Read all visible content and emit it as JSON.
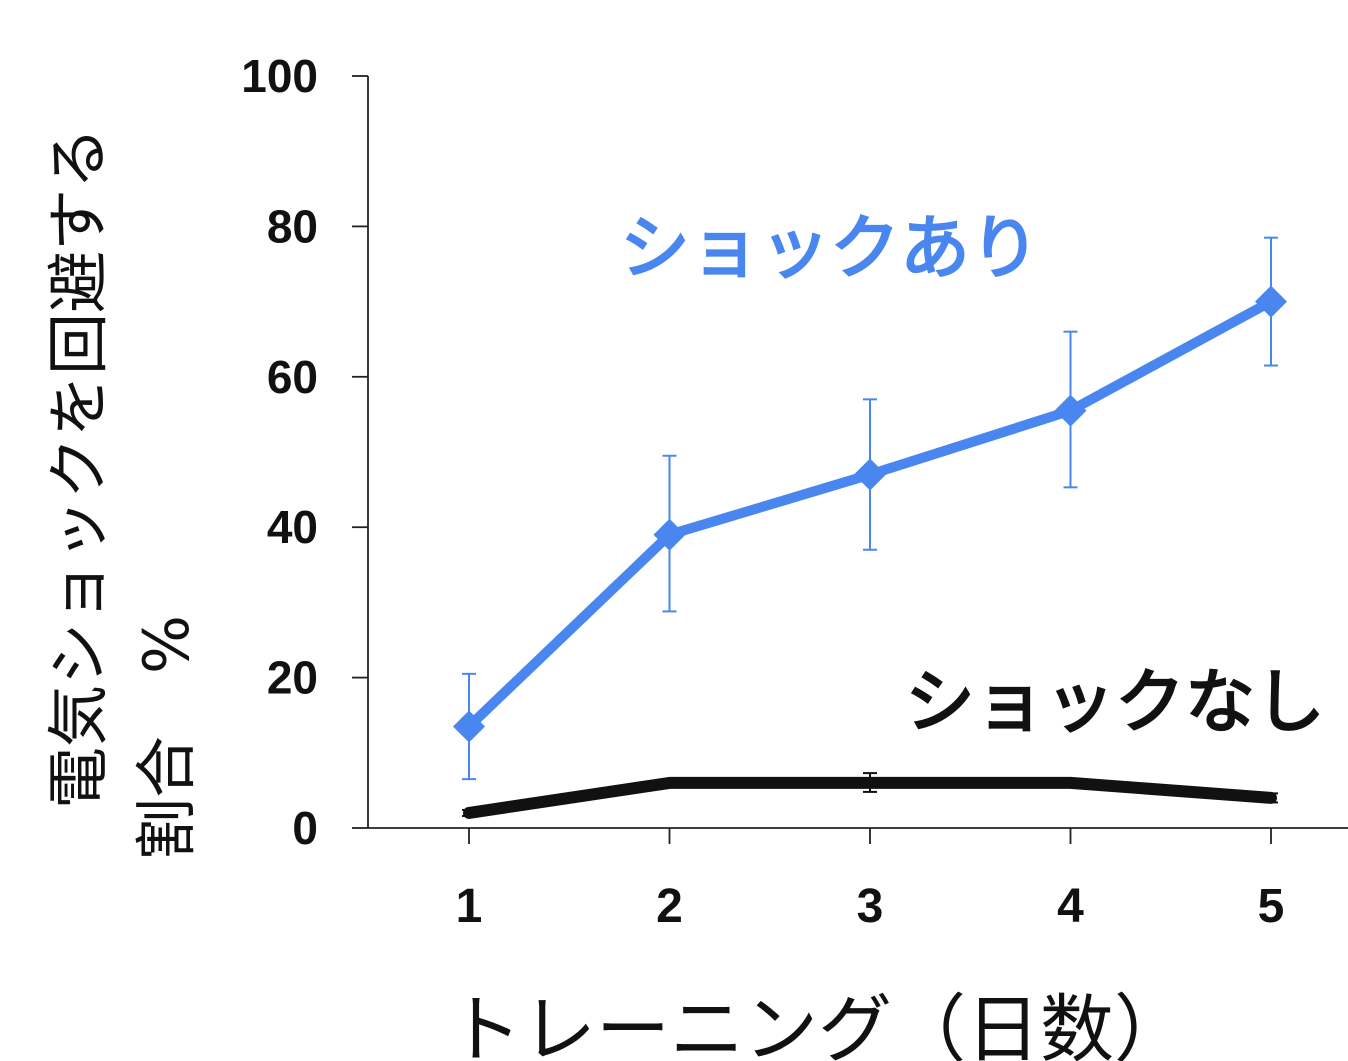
{
  "chart_data": {
    "type": "line",
    "x": [
      1,
      2,
      3,
      4,
      5
    ],
    "x_tick_labels": [
      "1",
      "2",
      "3",
      "4",
      "5"
    ],
    "y_ticks": [
      0,
      20,
      40,
      60,
      80,
      100
    ],
    "y_tick_labels": [
      "0",
      "20",
      "40",
      "60",
      "80",
      "100"
    ],
    "xlim": [
      0.5,
      5.5
    ],
    "ylim": [
      0,
      100
    ],
    "xlabel": "トレーニング（日数）",
    "ylabel_line1": "電気ショックを回避する",
    "ylabel_line2": "割合　%",
    "grid": false,
    "series": [
      {
        "name": "ショックあり",
        "color": "#4a86f0",
        "marker": "diamond",
        "values": [
          13.5,
          39,
          47,
          55.5,
          70
        ],
        "error_high": [
          20.5,
          49.5,
          57,
          66,
          78.5
        ],
        "error_low": [
          6.5,
          28.8,
          37,
          45.3,
          61.5
        ]
      },
      {
        "name": "ショックなし",
        "color": "#111111",
        "marker": "none",
        "values": [
          2,
          6,
          6,
          6,
          4
        ],
        "error_high": [
          2.4,
          6.4,
          7.3,
          6.4,
          4.6
        ],
        "error_low": [
          1.6,
          5.6,
          4.8,
          5.6,
          3.4
        ]
      }
    ]
  }
}
